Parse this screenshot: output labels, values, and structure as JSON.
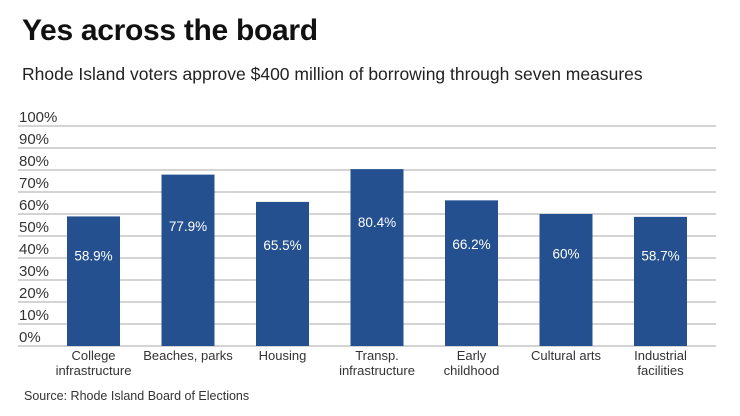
{
  "chart_data": {
    "type": "bar",
    "title": "Yes across the board",
    "subtitle": "Rhode Island voters approve $400 million of borrowing through seven measures",
    "categories": [
      [
        "College",
        "infrastructure"
      ],
      [
        "Beaches, parks"
      ],
      [
        "Housing"
      ],
      [
        "Transp.",
        "infrastructure"
      ],
      [
        "Early",
        "childhood"
      ],
      [
        "Cultural arts"
      ],
      [
        "Industrial",
        "facilities"
      ]
    ],
    "values": [
      58.9,
      77.9,
      65.5,
      80.4,
      66.2,
      60,
      58.7
    ],
    "data_labels": [
      "58.9%",
      "77.9%",
      "65.5%",
      "80.4%",
      "66.2%",
      "60%",
      "58.7%"
    ],
    "yticks": [
      "0%",
      "10%",
      "20%",
      "30%",
      "40%",
      "50%",
      "60%",
      "70%",
      "80%",
      "90%",
      "100%"
    ],
    "ylim": [
      0,
      100
    ],
    "xlabel": "",
    "ylabel": "",
    "grid": true,
    "bar_color": "#24508f",
    "source": "Source: Rhode Island Board of Elections"
  }
}
